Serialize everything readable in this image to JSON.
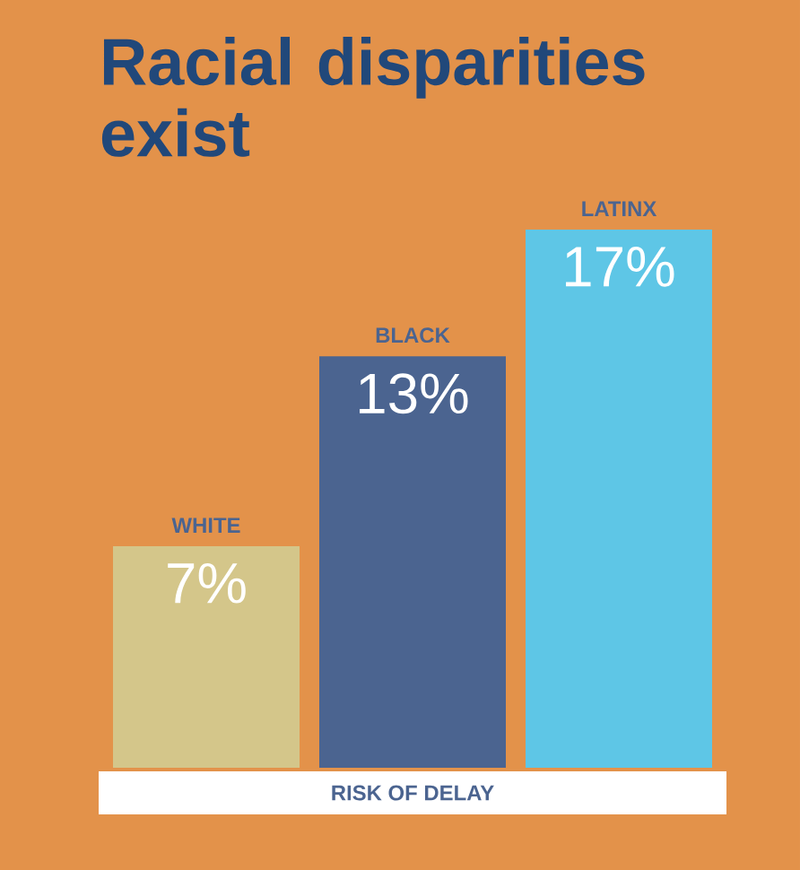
{
  "chart_data": {
    "type": "bar",
    "title": "Racial disparities exist",
    "categories": [
      "WHITE",
      "BLACK",
      "LATINX"
    ],
    "values": [
      7,
      13,
      17
    ],
    "colors": [
      "#d4c68a",
      "#4b6490",
      "#5ec6e6"
    ],
    "value_labels": [
      "7%",
      "13%",
      "17%"
    ],
    "xlabel": "RISK OF DELAY"
  }
}
